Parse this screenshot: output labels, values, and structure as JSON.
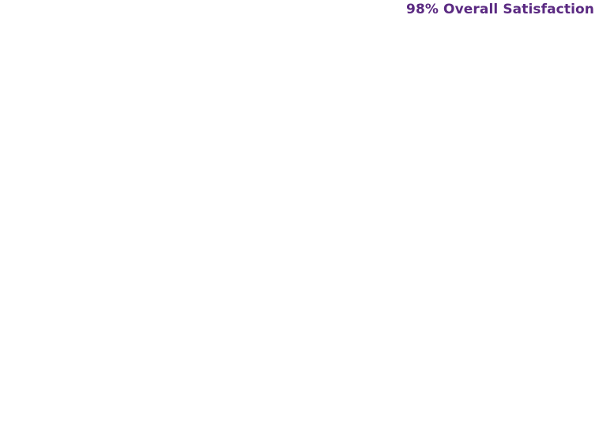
{
  "headline": {
    "text": "98% Overall Satisfaction",
    "color": "#5b2a82"
  }
}
